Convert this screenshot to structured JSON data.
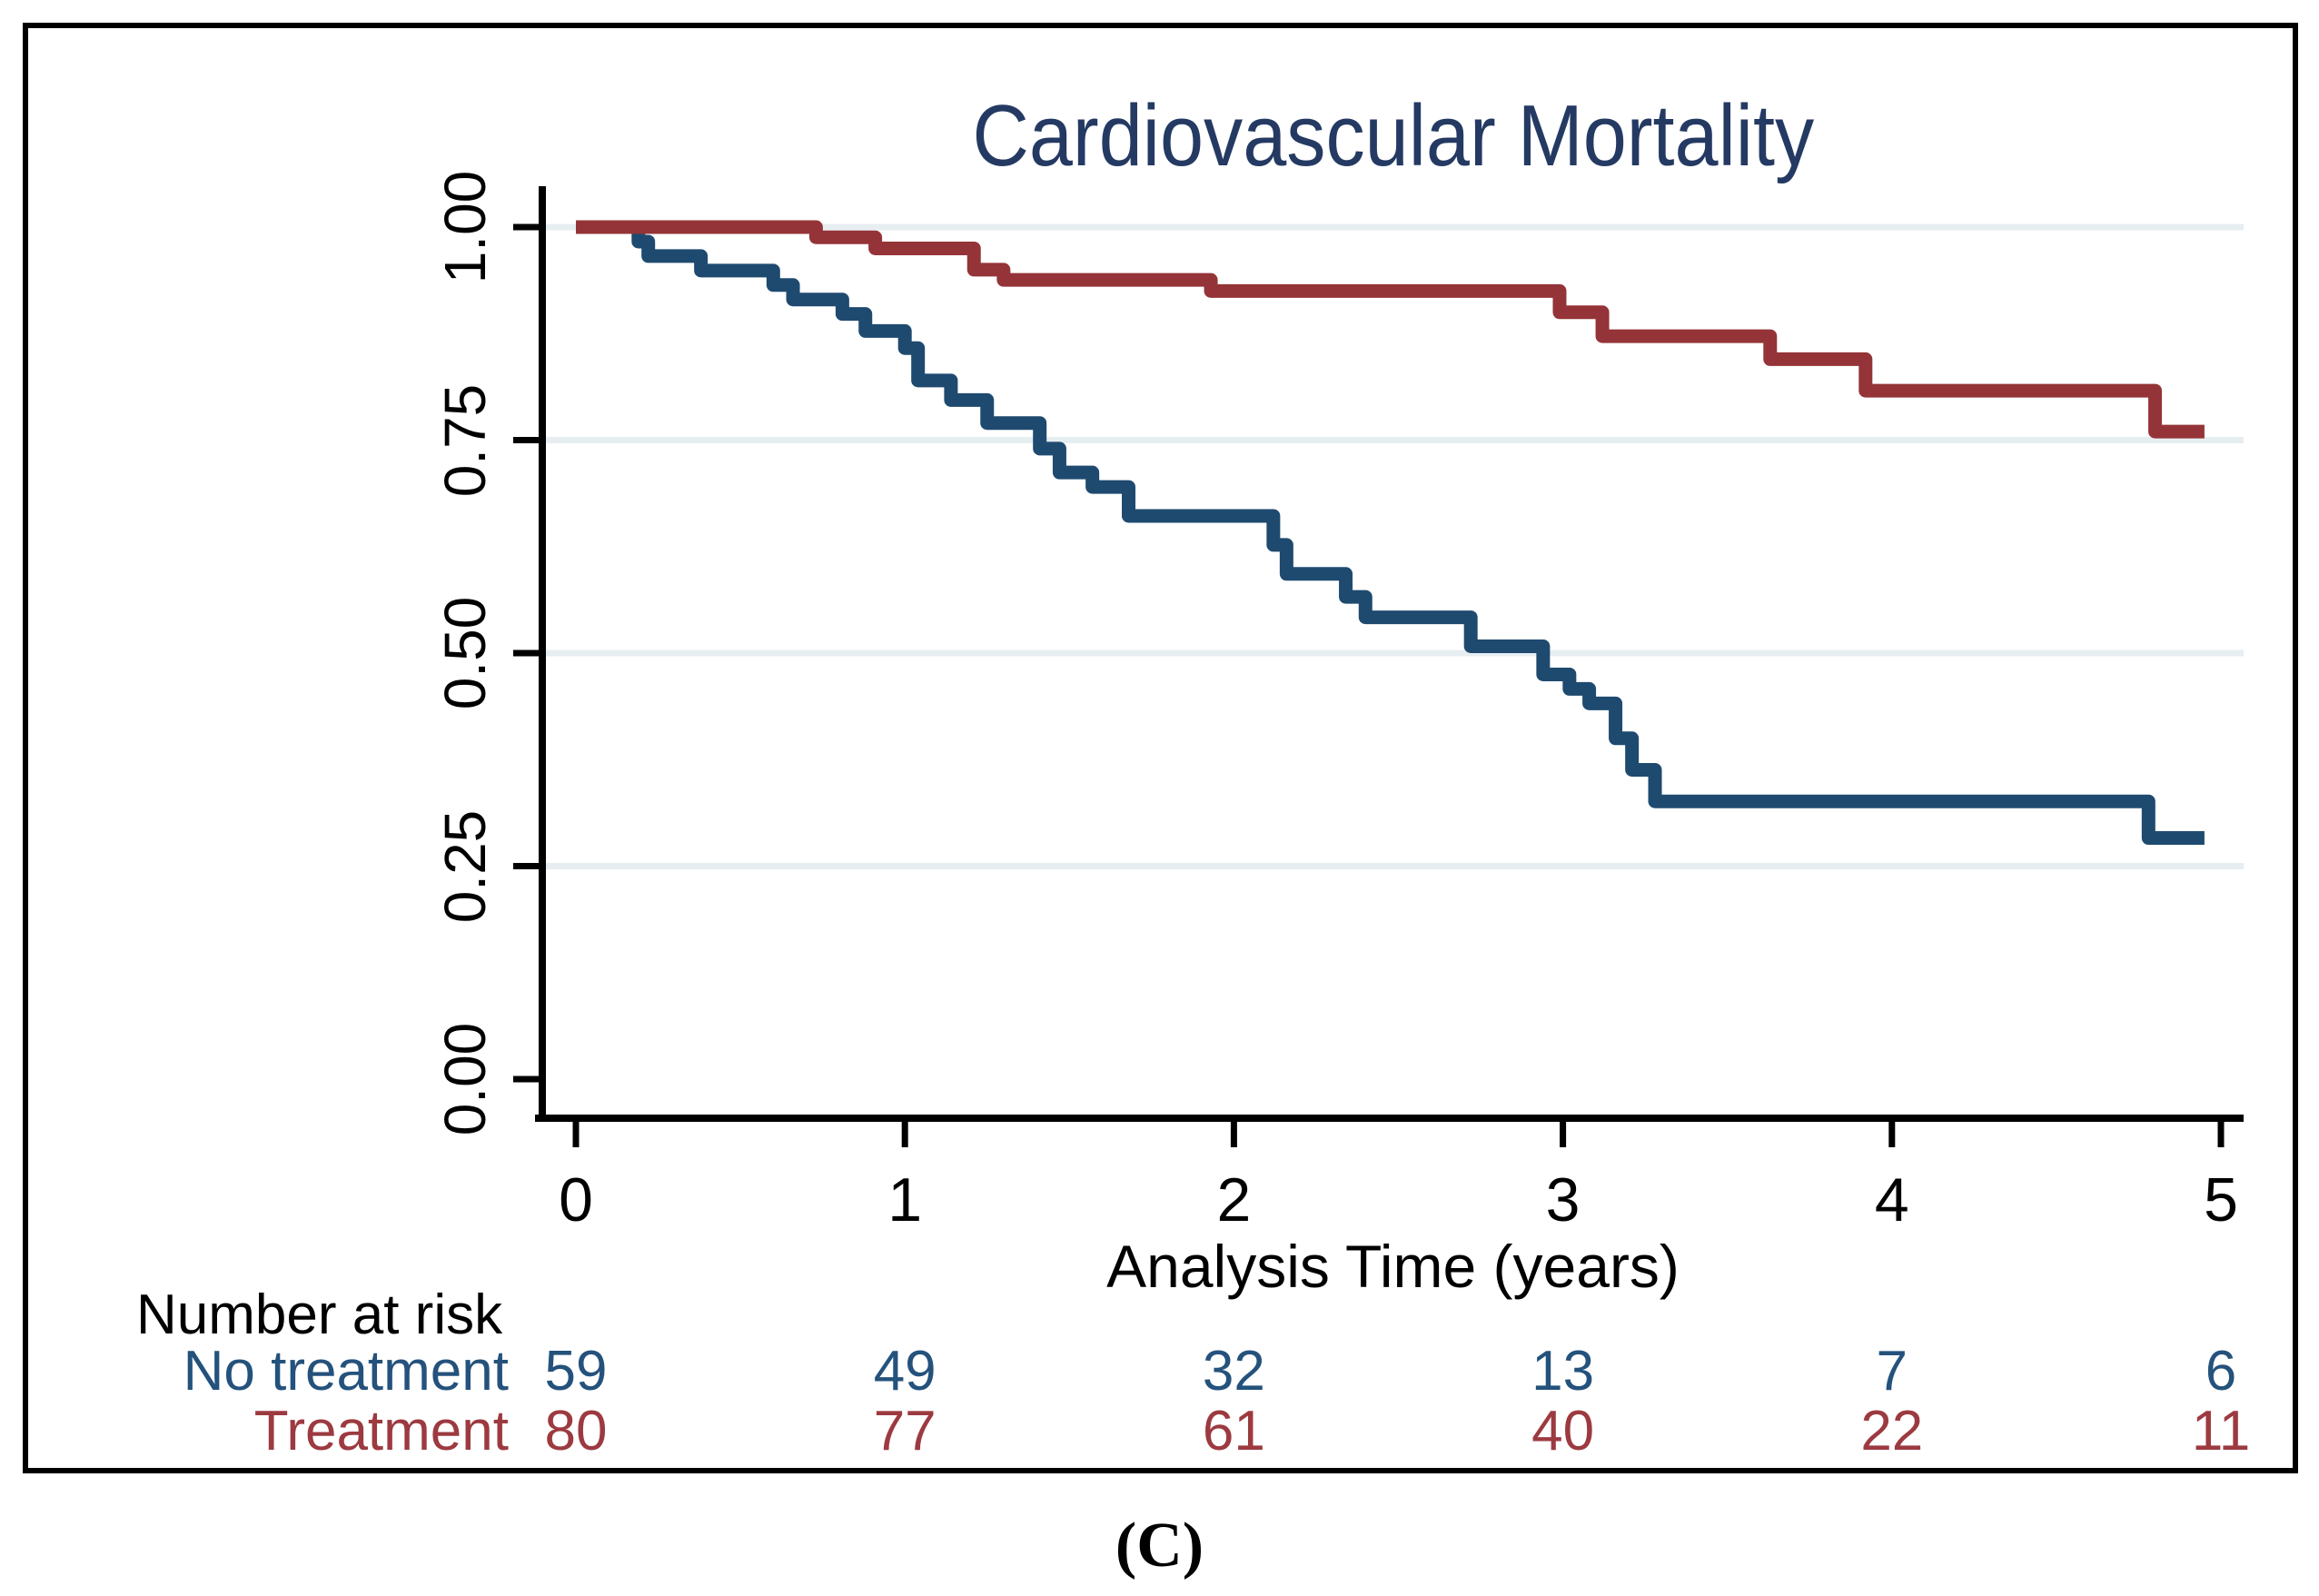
{
  "figure": {
    "caption": "(C)"
  },
  "colors": {
    "no_treatment_line": "#1F4A70",
    "treatment_line": "#943438",
    "no_treatment_text": "#24527C",
    "treatment_text": "#9C3A40",
    "title_text": "#243A63",
    "gridline": "#E7EEF2",
    "axis": "#000000"
  },
  "chart_data": {
    "type": "line",
    "subtype": "kaplan-meier-step",
    "title": "Cardiovascular Mortality",
    "xlabel": "Analysis Time (years)",
    "ylabel": "",
    "xlim": [
      0,
      5
    ],
    "ylim": [
      0.0,
      1.0
    ],
    "grid": "horizontal",
    "gridline_values": [
      1.0,
      0.75,
      0.5,
      0.25
    ],
    "x_ticks": [
      {
        "value": 0,
        "label": "0"
      },
      {
        "value": 1,
        "label": "1"
      },
      {
        "value": 2,
        "label": "2"
      },
      {
        "value": 3,
        "label": "3"
      },
      {
        "value": 4,
        "label": "4"
      },
      {
        "value": 5,
        "label": "5"
      }
    ],
    "y_ticks": [
      {
        "value": 1.0,
        "label": "1.00"
      },
      {
        "value": 0.75,
        "label": "0.75"
      },
      {
        "value": 0.5,
        "label": "0.50"
      },
      {
        "value": 0.25,
        "label": "0.25"
      },
      {
        "value": 0.0,
        "label": "0.00"
      }
    ],
    "series": [
      {
        "name": "No treatment",
        "color": "#1F4A70",
        "end_t": 4.95,
        "step_points": [
          [
            0.0,
            1.0
          ],
          [
            0.19,
            0.983
          ],
          [
            0.22,
            0.966
          ],
          [
            0.38,
            0.949
          ],
          [
            0.6,
            0.932
          ],
          [
            0.66,
            0.915
          ],
          [
            0.81,
            0.898
          ],
          [
            0.88,
            0.878
          ],
          [
            1.0,
            0.858
          ],
          [
            1.04,
            0.82
          ],
          [
            1.14,
            0.797
          ],
          [
            1.25,
            0.77
          ],
          [
            1.41,
            0.74
          ],
          [
            1.47,
            0.712
          ],
          [
            1.57,
            0.695
          ],
          [
            1.68,
            0.661
          ],
          [
            2.12,
            0.627
          ],
          [
            2.16,
            0.593
          ],
          [
            2.34,
            0.566
          ],
          [
            2.4,
            0.542
          ],
          [
            2.72,
            0.508
          ],
          [
            2.94,
            0.475
          ],
          [
            3.02,
            0.458
          ],
          [
            3.08,
            0.441
          ],
          [
            3.16,
            0.4
          ],
          [
            3.21,
            0.363
          ],
          [
            3.28,
            0.326
          ],
          [
            4.78,
            0.283
          ]
        ]
      },
      {
        "name": "Treatment",
        "color": "#943438",
        "end_t": 4.95,
        "step_points": [
          [
            0.0,
            1.0
          ],
          [
            0.73,
            0.988
          ],
          [
            0.91,
            0.975
          ],
          [
            1.21,
            0.95
          ],
          [
            1.3,
            0.938
          ],
          [
            1.93,
            0.925
          ],
          [
            2.99,
            0.9
          ],
          [
            3.12,
            0.872
          ],
          [
            3.63,
            0.845
          ],
          [
            3.92,
            0.808
          ],
          [
            4.8,
            0.76
          ]
        ]
      }
    ]
  },
  "risk_table": {
    "header": "Number at risk",
    "times": [
      0,
      1,
      2,
      3,
      4,
      5
    ],
    "rows": [
      {
        "label": "No treatment",
        "color": "#24527C",
        "values": [
          59,
          49,
          32,
          13,
          7,
          6
        ]
      },
      {
        "label": "Treatment",
        "color": "#9C3A40",
        "values": [
          80,
          77,
          61,
          40,
          22,
          11
        ]
      }
    ]
  }
}
